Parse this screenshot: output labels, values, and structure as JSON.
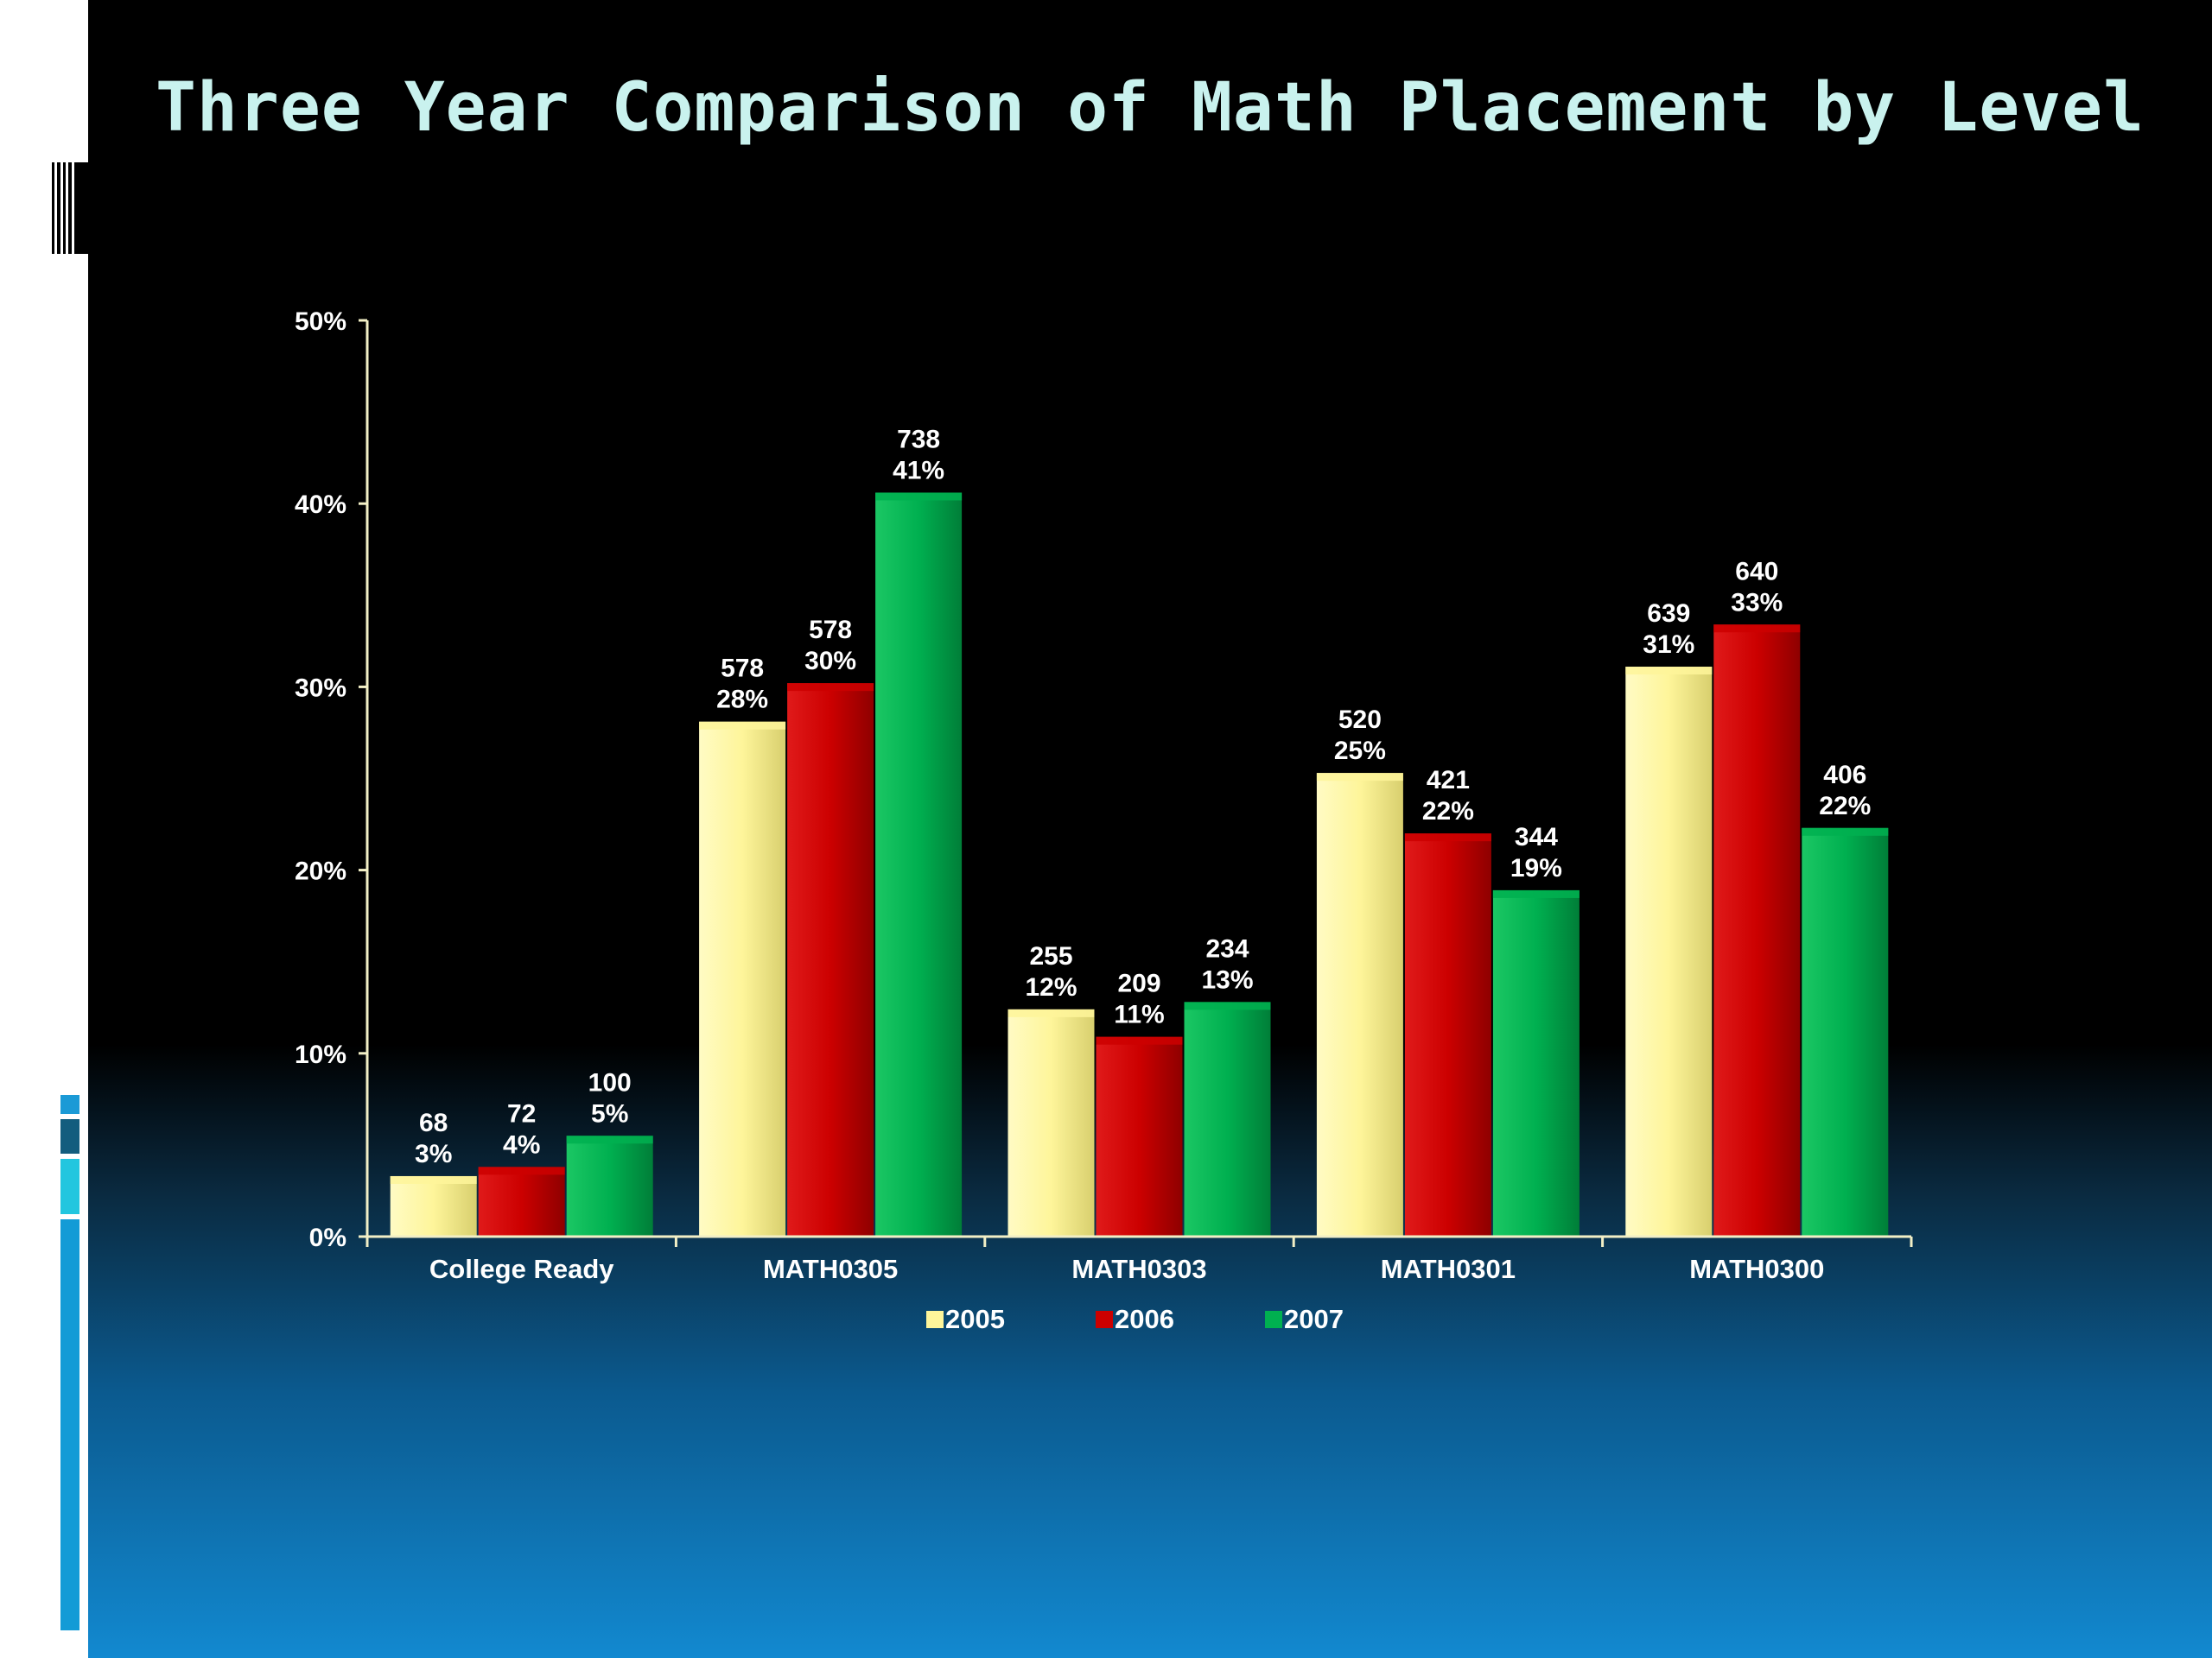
{
  "slide": {
    "title": "Three Year Comparison of Math Placement by Level"
  },
  "colors": {
    "2005": "#fef59a",
    "2006": "#cc0000",
    "2007": "#00b050",
    "axis": "#f2efc6",
    "title": "#c9f2ee"
  },
  "chart_data": {
    "type": "bar",
    "title": "Three Year Comparison of Math Placement by Level",
    "categories": [
      "College Ready",
      "MATH0305",
      "MATH0303",
      "MATH0301",
      "MATH0300"
    ],
    "series": [
      {
        "name": "2005",
        "values": [
          3.3,
          28.1,
          12.4,
          25.3,
          31.1
        ],
        "counts": [
          "68",
          "578",
          "255",
          "520",
          "639"
        ],
        "pct_labels": [
          "3%",
          "28%",
          "12%",
          "25%",
          "31%"
        ]
      },
      {
        "name": "2006",
        "values": [
          3.8,
          30.2,
          10.9,
          22.0,
          33.4
        ],
        "counts": [
          "72",
          "578",
          "209",
          "421",
          "640"
        ],
        "pct_labels": [
          "4%",
          "30%",
          "11%",
          "22%",
          "33%"
        ]
      },
      {
        "name": "2007",
        "values": [
          5.5,
          40.6,
          12.8,
          18.9,
          22.3
        ],
        "counts": [
          "100",
          "738",
          "234",
          "344",
          "406"
        ],
        "pct_labels": [
          "5%",
          "41%",
          "13%",
          "19%",
          "22%"
        ]
      }
    ],
    "ylim": [
      0,
      50
    ],
    "yticks": [
      "0%",
      "10%",
      "20%",
      "30%",
      "40%",
      "50%"
    ],
    "xlabel": "",
    "ylabel": "",
    "legend": [
      "2005",
      "2006",
      "2007"
    ],
    "legend_position": "bottom",
    "grid": false
  }
}
